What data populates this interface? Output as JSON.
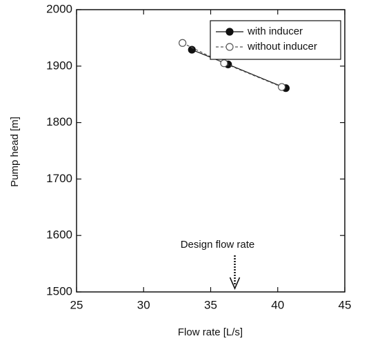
{
  "chart_data": {
    "type": "line",
    "x_label": "Flow rate [L/s]",
    "y_label": "Pump head [m]",
    "xlim": [
      25,
      45
    ],
    "xticks": [
      25,
      30,
      35,
      40,
      45
    ],
    "ylim": [
      1500,
      2000
    ],
    "yticks": [
      1500,
      1600,
      1700,
      1800,
      1900,
      2000
    ],
    "legend": "upper right",
    "series": [
      {
        "name": "with inducer",
        "color": "#111111",
        "linestyle": "solid",
        "marker": "filled",
        "x": [
          33.6,
          36.3,
          40.6
        ],
        "values": [
          1929,
          1903,
          1861
        ]
      },
      {
        "name": "without inducer",
        "color": "#555555",
        "linestyle": "dashed",
        "marker": "open",
        "x": [
          32.9,
          36.0,
          40.3
        ],
        "values": [
          1941,
          1905,
          1863
        ]
      }
    ],
    "annotation": {
      "text": "Design flow rate",
      "x": 36.8
    }
  }
}
